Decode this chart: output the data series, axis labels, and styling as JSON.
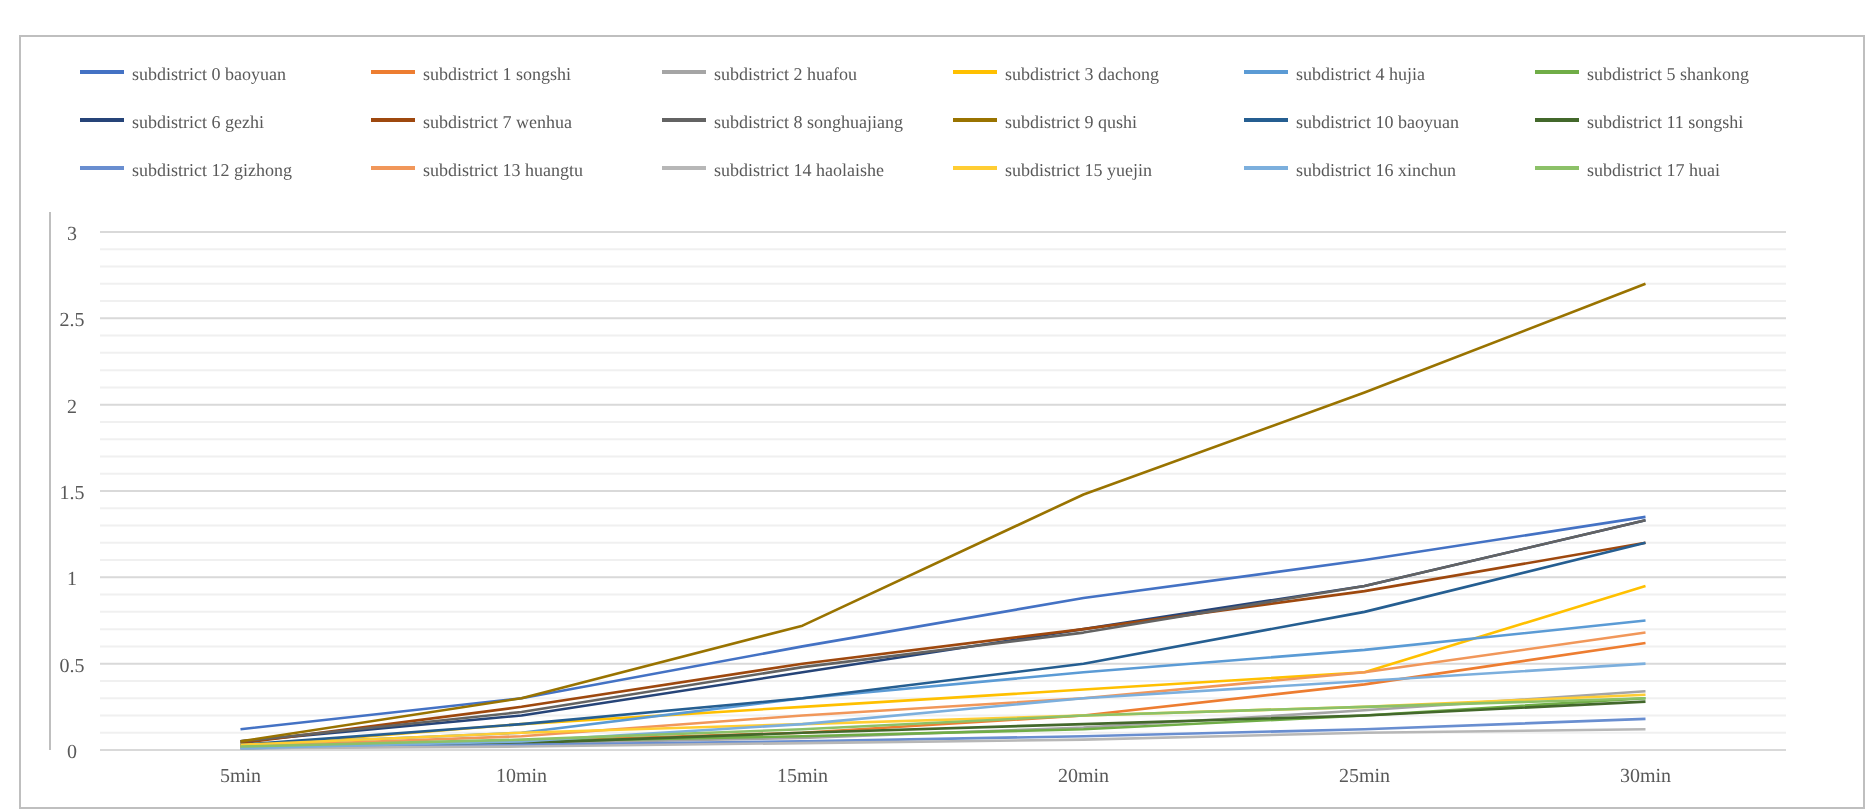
{
  "chart_data": {
    "type": "line",
    "categories": [
      "5min",
      "10min",
      "15min",
      "20min",
      "25min",
      "30min"
    ],
    "ylim": [
      0,
      3
    ],
    "yticks": [
      0,
      {
        "value": 0.1,
        "label": null
      },
      {
        "value": 0.2,
        "label": null
      },
      {
        "value": 0.3,
        "label": null
      },
      {
        "value": 0.4,
        "label": null
      },
      0.5,
      {
        "value": 0.6,
        "label": null
      },
      {
        "value": 0.7,
        "label": null
      },
      {
        "value": 0.8,
        "label": null
      },
      {
        "value": 0.9,
        "label": null
      },
      1,
      {
        "value": 1.1,
        "label": null
      },
      {
        "value": 1.2,
        "label": null
      },
      {
        "value": 1.3,
        "label": null
      },
      {
        "value": 1.4,
        "label": null
      },
      1.5,
      {
        "value": 1.6,
        "label": null
      },
      {
        "value": 1.7,
        "label": null
      },
      {
        "value": 1.8,
        "label": null
      },
      {
        "value": 1.9,
        "label": null
      },
      2,
      {
        "value": 2.1,
        "label": null
      },
      {
        "value": 2.2,
        "label": null
      },
      {
        "value": 2.3,
        "label": null
      },
      {
        "value": 2.4,
        "label": null
      },
      2.5,
      {
        "value": 2.6,
        "label": null
      },
      {
        "value": 2.7,
        "label": null
      },
      {
        "value": 2.8,
        "label": null
      },
      {
        "value": 2.9,
        "label": null
      },
      3
    ],
    "grid": "y",
    "legend": "top",
    "marker": "none",
    "line_style": "solid",
    "series": [
      {
        "name": "subdistrict 0 baoyuan",
        "color": "#4472c4",
        "values": [
          0.12,
          0.3,
          0.6,
          0.88,
          1.1,
          1.35
        ]
      },
      {
        "name": "subdistrict 1 songshi",
        "color": "#ed7d31",
        "values": [
          0.02,
          0.05,
          0.1,
          0.2,
          0.38,
          0.62
        ]
      },
      {
        "name": "subdistrict 2 huafou",
        "color": "#a5a5a5",
        "values": [
          0.02,
          0.04,
          0.07,
          0.13,
          0.23,
          0.34
        ]
      },
      {
        "name": "subdistrict 3 dachong",
        "color": "#ffc000",
        "values": [
          0.02,
          0.15,
          0.25,
          0.35,
          0.45,
          0.95
        ]
      },
      {
        "name": "subdistrict 4 hujia",
        "color": "#5b9bd5",
        "values": [
          0.03,
          0.1,
          0.3,
          0.45,
          0.58,
          0.75
        ]
      },
      {
        "name": "subdistrict 5 shankong",
        "color": "#70ad47",
        "values": [
          0.02,
          0.05,
          0.08,
          0.12,
          0.2,
          0.3
        ]
      },
      {
        "name": "subdistrict 6 gezhi",
        "color": "#264478",
        "values": [
          0.05,
          0.2,
          0.45,
          0.7,
          0.95,
          1.33
        ]
      },
      {
        "name": "subdistrict 7 wenhua",
        "color": "#9e480e",
        "values": [
          0.04,
          0.25,
          0.5,
          0.7,
          0.92,
          1.2
        ]
      },
      {
        "name": "subdistrict 8 songhuajiang",
        "color": "#636363",
        "values": [
          0.05,
          0.22,
          0.48,
          0.68,
          0.95,
          1.33
        ]
      },
      {
        "name": "subdistrict 9 qushi",
        "color": "#997300",
        "values": [
          0.05,
          0.3,
          0.72,
          1.48,
          2.07,
          2.7
        ]
      },
      {
        "name": "subdistrict 10 baoyuan",
        "color": "#255e91",
        "values": [
          0.03,
          0.15,
          0.3,
          0.5,
          0.8,
          1.2
        ]
      },
      {
        "name": "subdistrict 11 songshi",
        "color": "#43682b",
        "values": [
          0.01,
          0.04,
          0.1,
          0.15,
          0.2,
          0.28
        ]
      },
      {
        "name": "subdistrict 12 gizhong",
        "color": "#698ed0",
        "values": [
          0.01,
          0.03,
          0.05,
          0.08,
          0.12,
          0.18
        ]
      },
      {
        "name": "subdistrict 13 huangtu",
        "color": "#f1975a",
        "values": [
          0.02,
          0.08,
          0.2,
          0.3,
          0.45,
          0.68
        ]
      },
      {
        "name": "subdistrict 14 haolaishe",
        "color": "#b7b7b7",
        "values": [
          0.01,
          0.02,
          0.04,
          0.06,
          0.1,
          0.12
        ]
      },
      {
        "name": "subdistrict 15 yuejin",
        "color": "#ffcd33",
        "values": [
          0.03,
          0.1,
          0.15,
          0.2,
          0.25,
          0.32
        ]
      },
      {
        "name": "subdistrict 16 xinchun",
        "color": "#7cafdd",
        "values": [
          0.01,
          0.05,
          0.15,
          0.3,
          0.4,
          0.5
        ]
      },
      {
        "name": "subdistrict 17 huai",
        "color": "#8cc168",
        "values": [
          0.02,
          0.06,
          0.12,
          0.2,
          0.25,
          0.3
        ]
      }
    ]
  }
}
